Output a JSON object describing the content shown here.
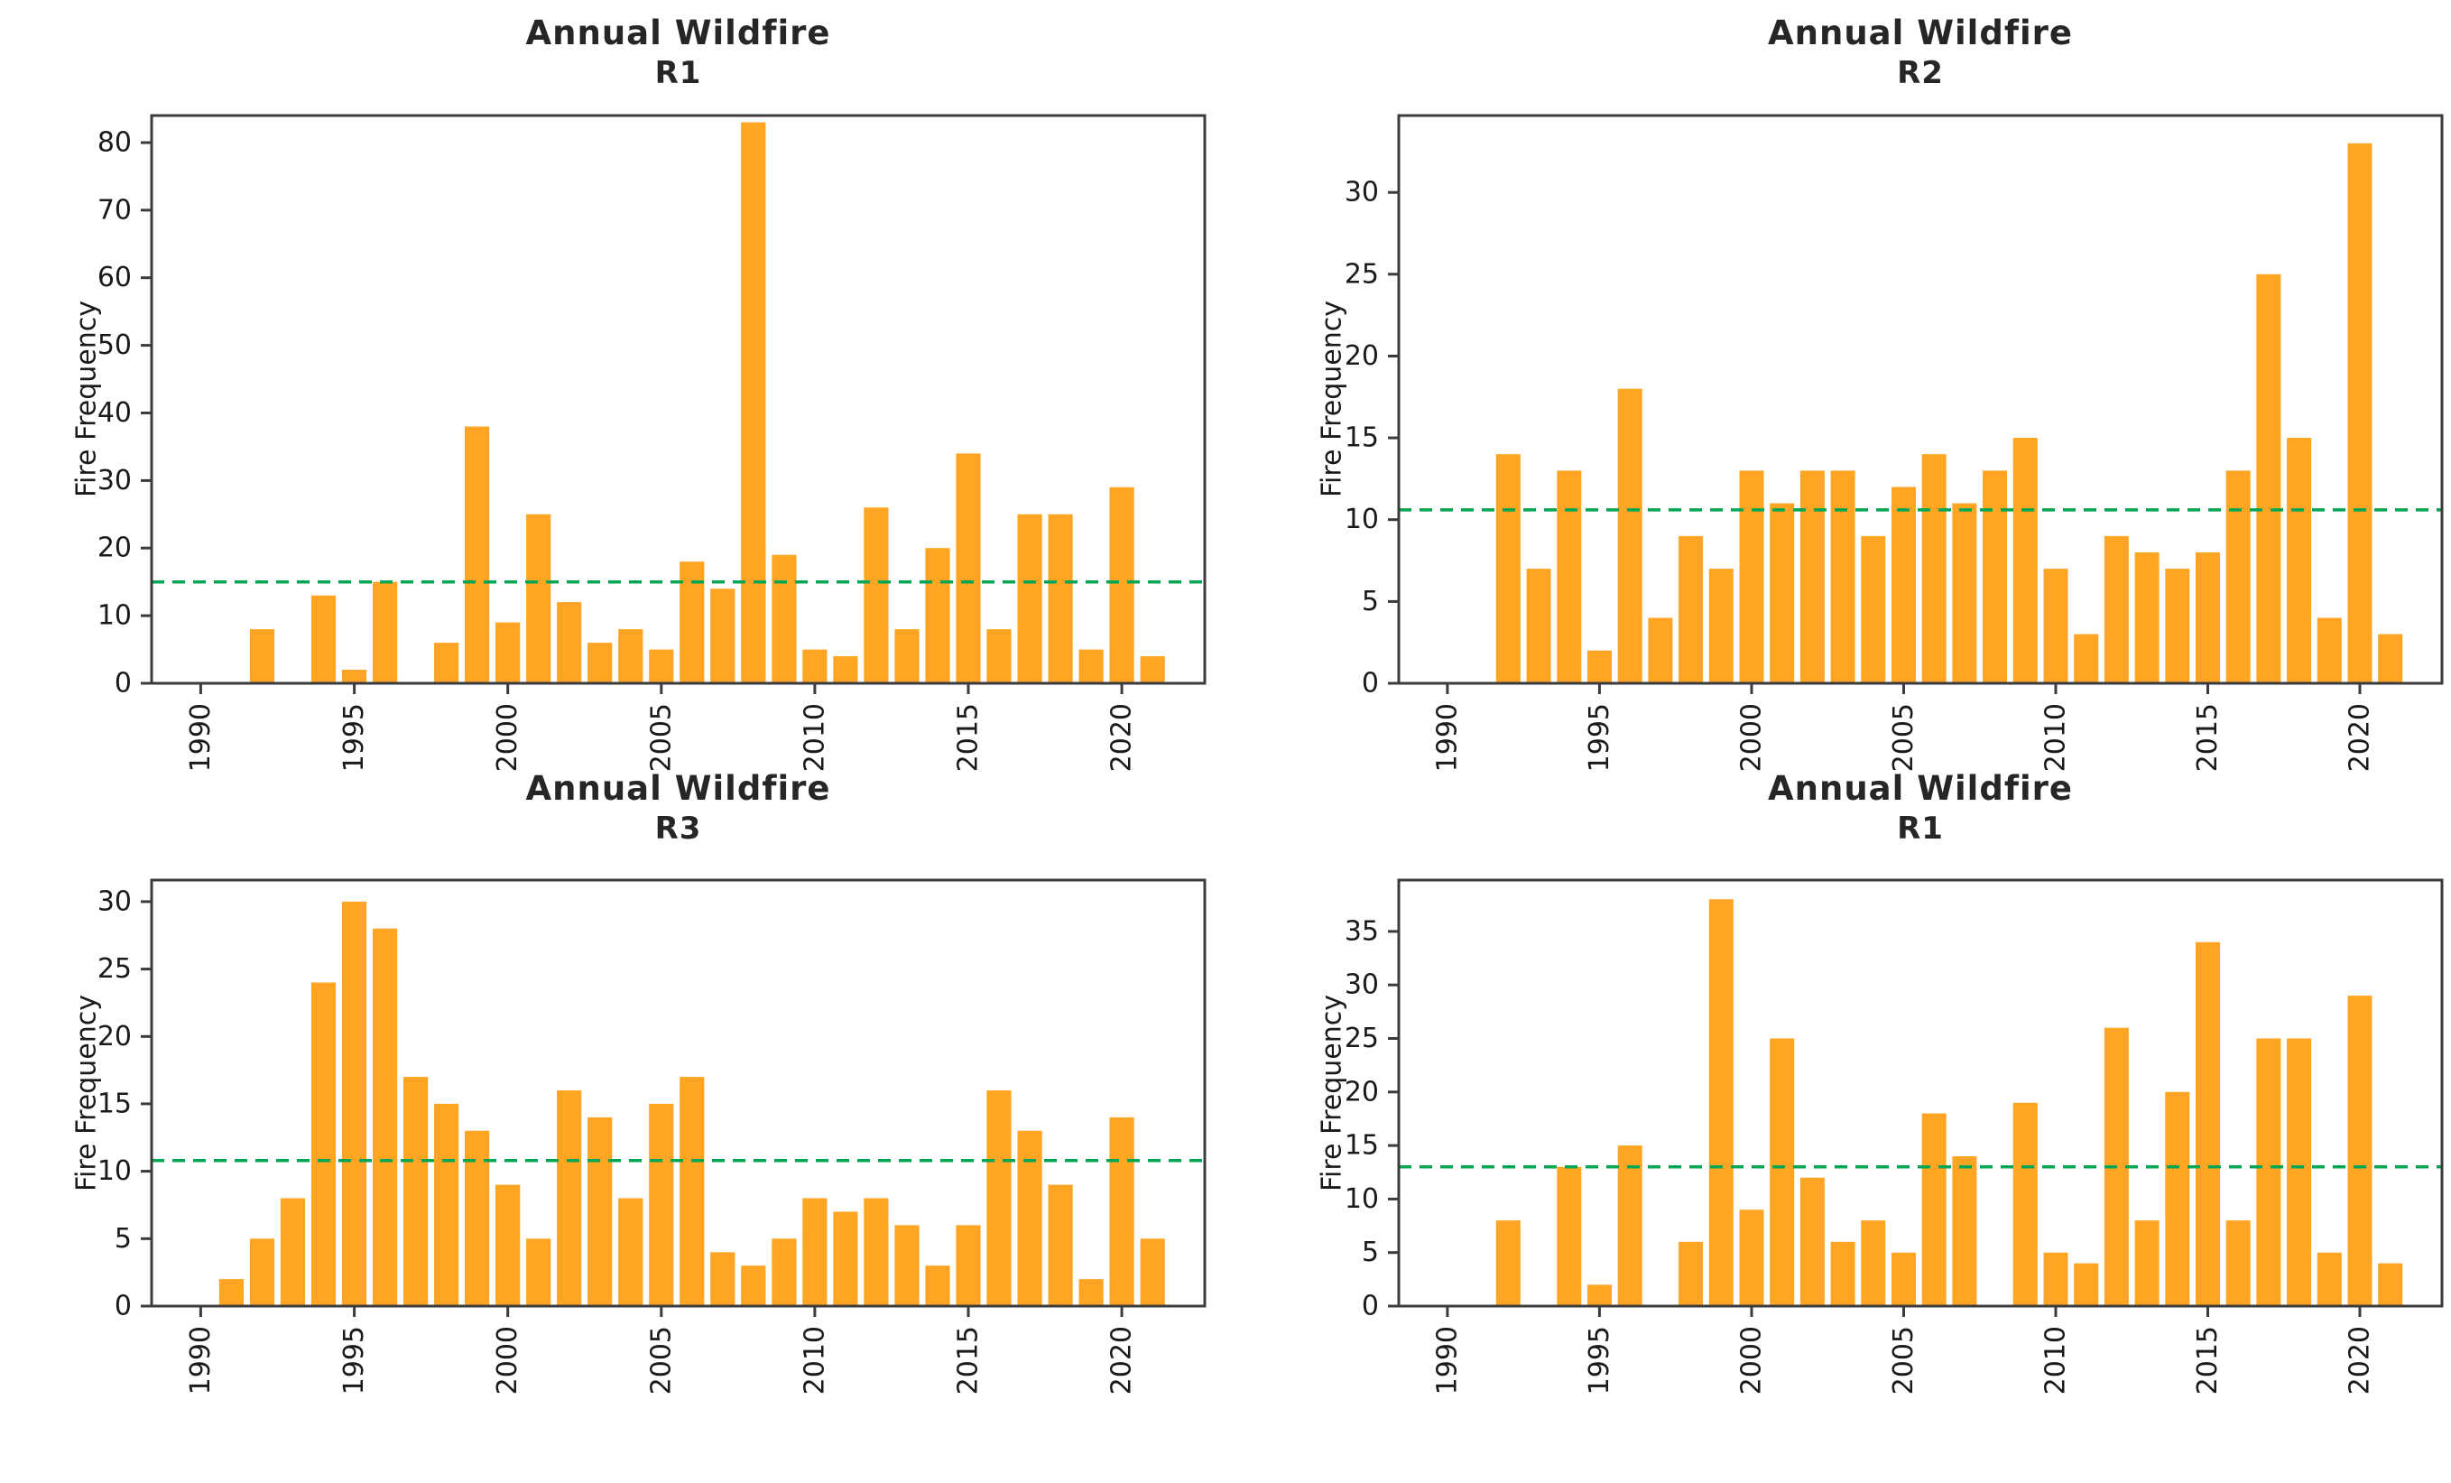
{
  "figure": {
    "background_color": "#ffffff",
    "bar_color": "#FFA423",
    "mean_line_color": "#00A651",
    "axis_color": "#3b3b3b",
    "text_color": "#1a1a1a"
  },
  "chart_data": [
    {
      "id": "r1-top",
      "type": "bar",
      "title": "Annual Wildfire",
      "subtitle": "R1",
      "xlabel": "",
      "ylabel": "Fire Frequency",
      "years": [
        1990,
        1991,
        1992,
        1993,
        1994,
        1995,
        1996,
        1997,
        1998,
        1999,
        2000,
        2001,
        2002,
        2003,
        2004,
        2005,
        2006,
        2007,
        2008,
        2009,
        2010,
        2011,
        2012,
        2013,
        2014,
        2015,
        2016,
        2017,
        2018,
        2019,
        2020,
        2021
      ],
      "values": [
        0,
        0,
        8,
        0,
        13,
        2,
        15,
        0,
        6,
        38,
        9,
        25,
        12,
        6,
        8,
        5,
        18,
        14,
        83,
        19,
        5,
        4,
        26,
        8,
        20,
        34,
        8,
        25,
        25,
        5,
        29,
        4
      ],
      "mean_line_value": 15.0,
      "xticks": [
        1990,
        1995,
        2000,
        2005,
        2010,
        2015,
        2020
      ],
      "yticks": [
        0,
        10,
        20,
        30,
        40,
        50,
        60,
        70,
        80
      ],
      "ylim": [
        0,
        84
      ],
      "xlim": [
        1988.4,
        2022.7
      ],
      "grid": false,
      "legend": "none"
    },
    {
      "id": "r2",
      "type": "bar",
      "title": "Annual Wildfire",
      "subtitle": "R2",
      "xlabel": "",
      "ylabel": "Fire Frequency",
      "years": [
        1990,
        1991,
        1992,
        1993,
        1994,
        1995,
        1996,
        1997,
        1998,
        1999,
        2000,
        2001,
        2002,
        2003,
        2004,
        2005,
        2006,
        2007,
        2008,
        2009,
        2010,
        2011,
        2012,
        2013,
        2014,
        2015,
        2016,
        2017,
        2018,
        2019,
        2020,
        2021
      ],
      "values": [
        0,
        0,
        14,
        7,
        13,
        2,
        18,
        4,
        9,
        7,
        13,
        11,
        13,
        13,
        9,
        12,
        14,
        11,
        13,
        15,
        7,
        3,
        9,
        8,
        7,
        8,
        13,
        25,
        15,
        4,
        33,
        3
      ],
      "mean_line_value": 10.6,
      "xticks": [
        1990,
        1995,
        2000,
        2005,
        2010,
        2015,
        2020
      ],
      "yticks": [
        0,
        5,
        10,
        15,
        20,
        25,
        30
      ],
      "ylim": [
        0,
        34.7
      ],
      "xlim": [
        1988.4,
        2022.7
      ],
      "grid": false,
      "legend": "none"
    },
    {
      "id": "r3",
      "type": "bar",
      "title": "Annual Wildfire",
      "subtitle": "R3",
      "xlabel": "",
      "ylabel": "Fire Frequency",
      "years": [
        1990,
        1991,
        1992,
        1993,
        1994,
        1995,
        1996,
        1997,
        1998,
        1999,
        2000,
        2001,
        2002,
        2003,
        2004,
        2005,
        2006,
        2007,
        2008,
        2009,
        2010,
        2011,
        2012,
        2013,
        2014,
        2015,
        2016,
        2017,
        2018,
        2019,
        2020,
        2021
      ],
      "values": [
        0,
        2,
        5,
        8,
        24,
        30,
        28,
        17,
        15,
        13,
        9,
        5,
        16,
        14,
        8,
        15,
        17,
        4,
        3,
        5,
        8,
        7,
        8,
        6,
        3,
        6,
        16,
        13,
        9,
        2,
        14,
        5
      ],
      "mean_line_value": 10.8,
      "xticks": [
        1990,
        1995,
        2000,
        2005,
        2010,
        2015,
        2020
      ],
      "yticks": [
        0,
        5,
        10,
        15,
        20,
        25,
        30
      ],
      "ylim": [
        0,
        31.6
      ],
      "xlim": [
        1988.4,
        2022.7
      ],
      "grid": false,
      "legend": "none"
    },
    {
      "id": "r1-bottom",
      "type": "bar",
      "title": "Annual Wildfire",
      "subtitle": "R1",
      "xlabel": "",
      "ylabel": "Fire Frequency",
      "years": [
        1990,
        1991,
        1992,
        1993,
        1994,
        1995,
        1996,
        1997,
        1998,
        1999,
        2000,
        2001,
        2002,
        2003,
        2004,
        2005,
        2006,
        2007,
        2008,
        2009,
        2010,
        2011,
        2012,
        2013,
        2014,
        2015,
        2016,
        2017,
        2018,
        2019,
        2020,
        2021
      ],
      "values": [
        0,
        0,
        8,
        0,
        13,
        2,
        15,
        0,
        6,
        38,
        9,
        25,
        12,
        6,
        8,
        5,
        18,
        14,
        0,
        19,
        5,
        4,
        26,
        8,
        20,
        34,
        8,
        25,
        25,
        5,
        29,
        4
      ],
      "mean_line_value": 13.0,
      "xticks": [
        1990,
        1995,
        2000,
        2005,
        2010,
        2015,
        2020
      ],
      "yticks": [
        0,
        5,
        10,
        15,
        20,
        25,
        30,
        35
      ],
      "ylim": [
        0,
        39.8
      ],
      "xlim": [
        1988.4,
        2022.7
      ],
      "grid": false,
      "legend": "none"
    }
  ]
}
